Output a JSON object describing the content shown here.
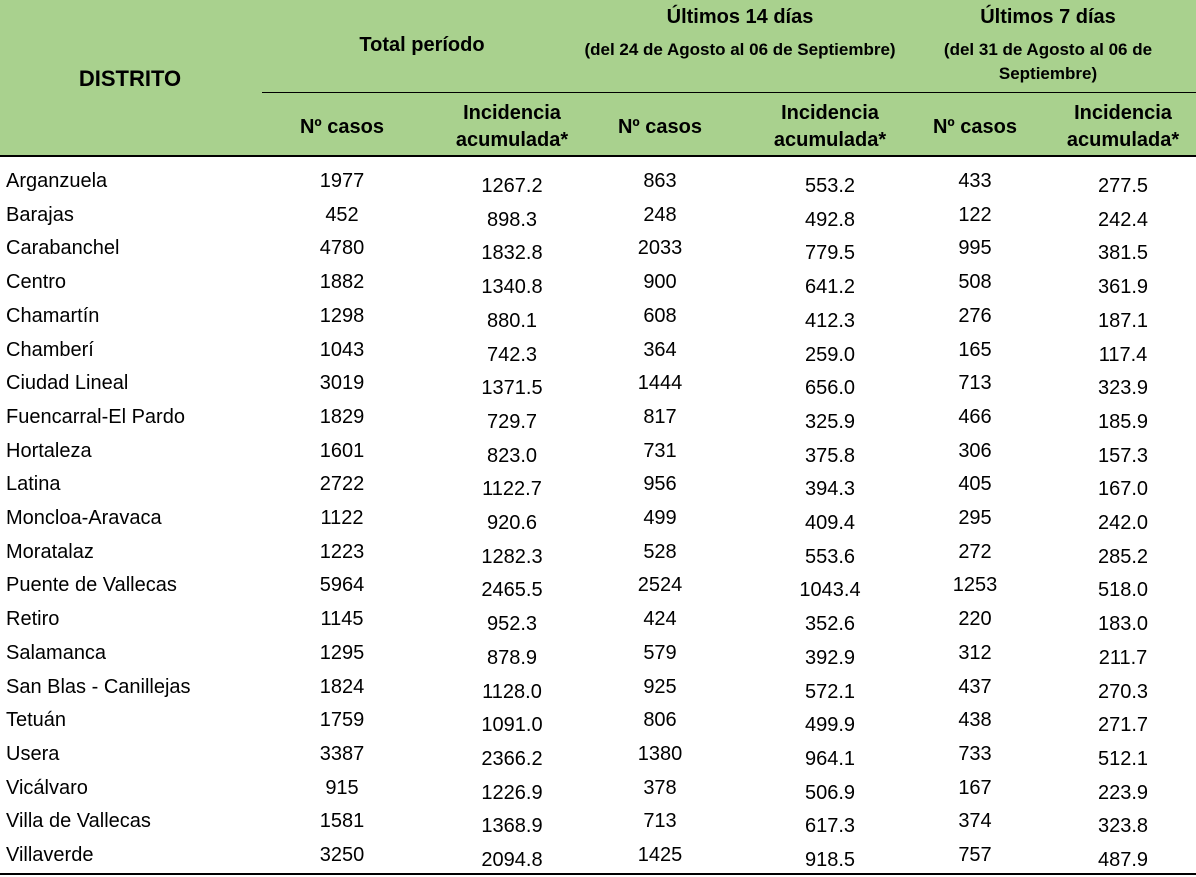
{
  "header": {
    "distrito": "DISTRITO",
    "total_periodo": "Total período",
    "ultimos14_title": "Últimos 14 días",
    "ultimos14_sub": "(del 24 de Agosto al 06 de Septiembre)",
    "ultimos7_title": "Últimos 7 días",
    "ultimos7_sub": "(del 31 de Agosto al 06 de Septiembre)",
    "casos": "Nº casos",
    "incidencia": "Incidencia acumulada*"
  },
  "rows": [
    {
      "name": "Arganzuela",
      "c1": "1977",
      "i1": "1267.2",
      "c2": "863",
      "i2": "553.2",
      "c3": "433",
      "i3": "277.5"
    },
    {
      "name": "Barajas",
      "c1": "452",
      "i1": "898.3",
      "c2": "248",
      "i2": "492.8",
      "c3": "122",
      "i3": "242.4"
    },
    {
      "name": "Carabanchel",
      "c1": "4780",
      "i1": "1832.8",
      "c2": "2033",
      "i2": "779.5",
      "c3": "995",
      "i3": "381.5"
    },
    {
      "name": "Centro",
      "c1": "1882",
      "i1": "1340.8",
      "c2": "900",
      "i2": "641.2",
      "c3": "508",
      "i3": "361.9"
    },
    {
      "name": "Chamartín",
      "c1": "1298",
      "i1": "880.1",
      "c2": "608",
      "i2": "412.3",
      "c3": "276",
      "i3": "187.1"
    },
    {
      "name": "Chamberí",
      "c1": "1043",
      "i1": "742.3",
      "c2": "364",
      "i2": "259.0",
      "c3": "165",
      "i3": "117.4"
    },
    {
      "name": "Ciudad Lineal",
      "c1": "3019",
      "i1": "1371.5",
      "c2": "1444",
      "i2": "656.0",
      "c3": "713",
      "i3": "323.9"
    },
    {
      "name": "Fuencarral-El Pardo",
      "c1": "1829",
      "i1": "729.7",
      "c2": "817",
      "i2": "325.9",
      "c3": "466",
      "i3": "185.9"
    },
    {
      "name": "Hortaleza",
      "c1": "1601",
      "i1": "823.0",
      "c2": "731",
      "i2": "375.8",
      "c3": "306",
      "i3": "157.3"
    },
    {
      "name": "Latina",
      "c1": "2722",
      "i1": "1122.7",
      "c2": "956",
      "i2": "394.3",
      "c3": "405",
      "i3": "167.0"
    },
    {
      "name": "Moncloa-Aravaca",
      "c1": "1122",
      "i1": "920.6",
      "c2": "499",
      "i2": "409.4",
      "c3": "295",
      "i3": "242.0"
    },
    {
      "name": "Moratalaz",
      "c1": "1223",
      "i1": "1282.3",
      "c2": "528",
      "i2": "553.6",
      "c3": "272",
      "i3": "285.2"
    },
    {
      "name": "Puente de Vallecas",
      "c1": "5964",
      "i1": "2465.5",
      "c2": "2524",
      "i2": "1043.4",
      "c3": "1253",
      "i3": "518.0"
    },
    {
      "name": "Retiro",
      "c1": "1145",
      "i1": "952.3",
      "c2": "424",
      "i2": "352.6",
      "c3": "220",
      "i3": "183.0"
    },
    {
      "name": "Salamanca",
      "c1": "1295",
      "i1": "878.9",
      "c2": "579",
      "i2": "392.9",
      "c3": "312",
      "i3": "211.7"
    },
    {
      "name": "San Blas - Canillejas",
      "c1": "1824",
      "i1": "1128.0",
      "c2": "925",
      "i2": "572.1",
      "c3": "437",
      "i3": "270.3"
    },
    {
      "name": "Tetuán",
      "c1": "1759",
      "i1": "1091.0",
      "c2": "806",
      "i2": "499.9",
      "c3": "438",
      "i3": "271.7"
    },
    {
      "name": "Usera",
      "c1": "3387",
      "i1": "2366.2",
      "c2": "1380",
      "i2": "964.1",
      "c3": "733",
      "i3": "512.1"
    },
    {
      "name": "Vicálvaro",
      "c1": "915",
      "i1": "1226.9",
      "c2": "378",
      "i2": "506.9",
      "c3": "167",
      "i3": "223.9"
    },
    {
      "name": "Villa de Vallecas",
      "c1": "1581",
      "i1": "1368.9",
      "c2": "713",
      "i2": "617.3",
      "c3": "374",
      "i3": "323.8"
    },
    {
      "name": "Villaverde",
      "c1": "3250",
      "i1": "2094.8",
      "c2": "1425",
      "i2": "918.5",
      "c3": "757",
      "i3": "487.9"
    }
  ]
}
